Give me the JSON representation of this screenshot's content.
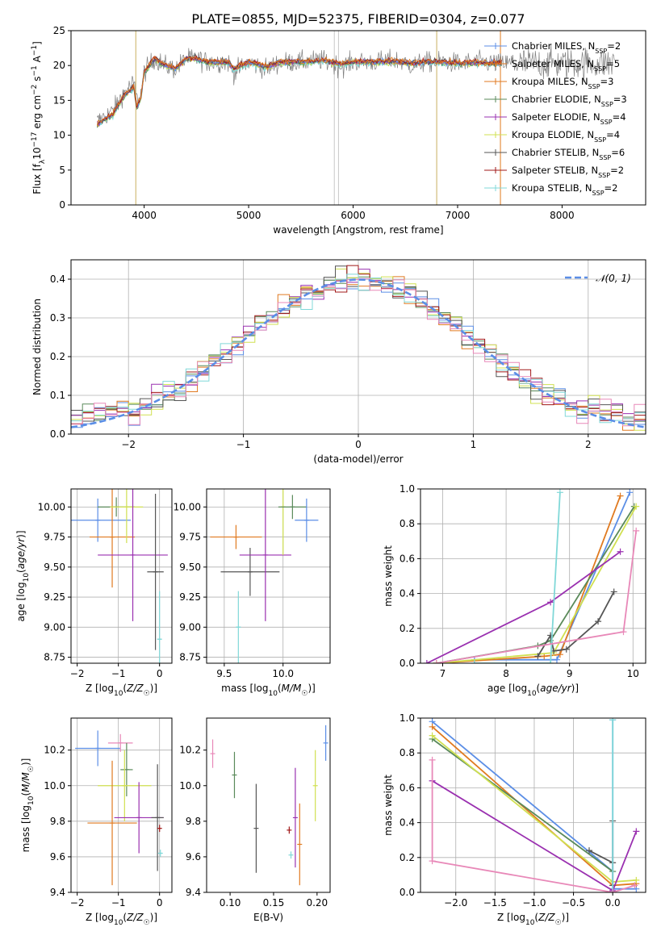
{
  "figure": {
    "title": "PLATE=0855, MJD=52375, FIBERID=0304, z=0.077"
  },
  "colors": {
    "series": [
      "#5b8ee6",
      "#e87b1c",
      "#c98b3c",
      "#5e8a58",
      "#a030c0",
      "#d6d83a",
      "#555555",
      "#b01818",
      "#7ed8d8"
    ],
    "lines": [
      "#5b8ee6",
      "#e07a20",
      "#e07a20",
      "#5a8a5a",
      "#9a30b0",
      "#d0e050",
      "#555555",
      "#a01818",
      "#80d8d8"
    ],
    "gaussian": "#5b8ee6",
    "grid": "#b0b0b0",
    "pink": "#e888b8"
  },
  "chart_data": [
    {
      "id": "spectrum",
      "type": "line",
      "xlabel": "wavelength [Angstrom, rest frame]",
      "ylabel": "Flux [f_λ10^-17 erg cm^-2 s^-1 A^-1]",
      "xlim": [
        3300,
        8800
      ],
      "ylim": [
        0,
        25
      ],
      "xticks": [
        4000,
        5000,
        6000,
        7000,
        8000
      ],
      "yticks": [
        0,
        5,
        10,
        15,
        20,
        25
      ],
      "grid": false,
      "legend_position": "right",
      "legend": [
        {
          "label": "Chabrier MILES, N",
          "sub": "SSP",
          "suffix": "=2"
        },
        {
          "label": "Salpeter MILES, N",
          "sub": "SSP",
          "suffix": "=5"
        },
        {
          "label": "Kroupa MILES, N",
          "sub": "SSP",
          "suffix": "=3"
        },
        {
          "label": "Chabrier ELODIE, N",
          "sub": "SSP",
          "suffix": "=3"
        },
        {
          "label": "Salpeter ELODIE, N",
          "sub": "SSP",
          "suffix": "=4"
        },
        {
          "label": "Kroupa ELODIE, N",
          "sub": "SSP",
          "suffix": "=4"
        },
        {
          "label": "Chabrier STELIB, N",
          "sub": "SSP",
          "suffix": "=6"
        },
        {
          "label": "Salpeter STELIB, N",
          "sub": "SSP",
          "suffix": "=2"
        },
        {
          "label": "Kroupa STELIB, N",
          "sub": "SSP",
          "suffix": "=2"
        }
      ],
      "data_continuum": [
        [
          3550,
          12
        ],
        [
          3700,
          13.5
        ],
        [
          3800,
          16
        ],
        [
          3900,
          17.5
        ],
        [
          3930,
          15
        ],
        [
          3970,
          16
        ],
        [
          4000,
          19
        ],
        [
          4100,
          21
        ],
        [
          4200,
          20
        ],
        [
          4300,
          19.5
        ],
        [
          4400,
          21
        ],
        [
          4500,
          21
        ],
        [
          4600,
          20.5
        ],
        [
          4800,
          20.5
        ],
        [
          4861,
          19
        ],
        [
          5000,
          20.5
        ],
        [
          5175,
          19.5
        ],
        [
          5300,
          20.5
        ],
        [
          5500,
          20.5
        ],
        [
          5700,
          20.8
        ],
        [
          5890,
          19.8
        ],
        [
          6000,
          20.5
        ],
        [
          6200,
          20.5
        ],
        [
          6400,
          20.8
        ],
        [
          6563,
          20
        ],
        [
          6700,
          20.5
        ],
        [
          6900,
          20.5
        ],
        [
          7000,
          20.3
        ],
        [
          7200,
          20.5
        ],
        [
          7420,
          20.3
        ]
      ],
      "model_continuum": [
        [
          3550,
          11.5
        ],
        [
          3700,
          13
        ],
        [
          3800,
          15.5
        ],
        [
          3900,
          17
        ],
        [
          3930,
          14
        ],
        [
          3970,
          15.5
        ],
        [
          4000,
          19
        ],
        [
          4100,
          21
        ],
        [
          4200,
          20
        ],
        [
          4300,
          19.5
        ],
        [
          4400,
          21
        ],
        [
          4500,
          21
        ],
        [
          4600,
          20.5
        ],
        [
          4800,
          20.5
        ],
        [
          4861,
          19.5
        ],
        [
          5000,
          20.5
        ],
        [
          5175,
          19.8
        ],
        [
          5300,
          20.5
        ],
        [
          5500,
          20.5
        ],
        [
          5700,
          20.7
        ],
        [
          5890,
          20.2
        ],
        [
          6000,
          20.5
        ],
        [
          6200,
          20.5
        ],
        [
          6400,
          20.6
        ],
        [
          6563,
          20.3
        ],
        [
          6700,
          20.5
        ],
        [
          6900,
          20.4
        ],
        [
          7000,
          20.3
        ],
        [
          7200,
          20.4
        ],
        [
          7420,
          20.3
        ]
      ],
      "masked_vlines": [
        3920,
        5820,
        5860,
        6800,
        7410
      ]
    },
    {
      "id": "residuals",
      "type": "histogram",
      "xlabel": "(data-model)/error",
      "ylabel": "Normed distribution",
      "xlim": [
        -2.5,
        2.5
      ],
      "ylim": [
        0,
        0.45
      ],
      "xticks": [
        -2,
        -1,
        0,
        1,
        2
      ],
      "yticks": [
        0.0,
        0.1,
        0.2,
        0.3,
        0.4
      ],
      "grid": true,
      "legend_position": "top-right",
      "gaussian_label": "N(0,1)",
      "bin_width": 0.1
    },
    {
      "id": "age_vs_Z",
      "type": "errorbar",
      "xlabel": "Z [log10(Z/Z☉)]",
      "ylabel": "age [log10(age/yr)]",
      "xlim": [
        -2.15,
        0.3
      ],
      "ylim": [
        8.7,
        10.15
      ],
      "xticks": [
        -2,
        -1,
        0
      ],
      "yticks": [
        8.75,
        9.0,
        9.25,
        9.5,
        9.75,
        10.0
      ],
      "grid": true,
      "points": [
        {
          "x": -1.5,
          "y": 9.89,
          "xerr": 0.8,
          "yerr": 0.18,
          "c": 0
        },
        {
          "x": -1.15,
          "y": 9.75,
          "xerr": 0.55,
          "yerr": 0.42,
          "c": 1
        },
        {
          "x": -1.05,
          "y": 10.0,
          "xerr": 0.45,
          "yerr": 0.08,
          "c": 3
        },
        {
          "x": -0.8,
          "y": 10.0,
          "xerr": 0.4,
          "yerr": 0.3,
          "c": 5
        },
        {
          "x": -0.65,
          "y": 9.6,
          "xerr": 0.85,
          "yerr": 0.55,
          "c": 4
        },
        {
          "x": -0.1,
          "y": 9.46,
          "xerr": 0.2,
          "yerr": 0.65,
          "c": 6
        },
        {
          "x": 0.0,
          "y": 8.9,
          "xerr": 0.05,
          "yerr": 0.4,
          "c": 8
        }
      ]
    },
    {
      "id": "age_vs_mass",
      "type": "errorbar",
      "xlabel": "mass [log10(M/M☉)]",
      "ylabel": "",
      "xlim": [
        9.35,
        10.4
      ],
      "ylim": [
        8.7,
        10.15
      ],
      "xticks": [
        9.5,
        10.0
      ],
      "yticks": [
        8.75,
        9.0,
        9.25,
        9.5,
        9.75,
        10.0
      ],
      "grid": true,
      "points": [
        {
          "x": 9.62,
          "y": 9.0,
          "xerr": 0.02,
          "yerr": 0.3,
          "c": 8
        },
        {
          "x": 9.6,
          "y": 9.75,
          "xerr": 0.22,
          "yerr": 0.1,
          "c": 1
        },
        {
          "x": 9.72,
          "y": 9.46,
          "xerr": 0.25,
          "yerr": 0.2,
          "c": 6
        },
        {
          "x": 9.85,
          "y": 9.6,
          "xerr": 0.22,
          "yerr": 0.55,
          "c": 4
        },
        {
          "x": 10.0,
          "y": 10.0,
          "xerr": 0.02,
          "yerr": 0.4,
          "c": 5
        },
        {
          "x": 10.08,
          "y": 10.0,
          "xerr": 0.12,
          "yerr": 0.1,
          "c": 3
        },
        {
          "x": 10.2,
          "y": 9.89,
          "xerr": 0.1,
          "yerr": 0.18,
          "c": 0
        }
      ]
    },
    {
      "id": "massweight_vs_age",
      "type": "line",
      "xlabel": "age [log10(age/yr)]",
      "ylabel": "mass weight",
      "xlim": [
        6.65,
        10.2
      ],
      "ylim": [
        0,
        1
      ],
      "xticks": [
        7,
        8,
        9,
        10
      ],
      "yticks": [
        0.0,
        0.2,
        0.4,
        0.6,
        0.8,
        1.0
      ],
      "grid": true,
      "series": [
        {
          "c": 0,
          "points": [
            [
              7.5,
              0.02
            ],
            [
              8.8,
              0.02
            ],
            [
              9.95,
              0.98
            ]
          ]
        },
        {
          "c": 1,
          "points": [
            [
              6.9,
              0.0
            ],
            [
              8.6,
              0.04
            ],
            [
              8.85,
              0.05
            ],
            [
              9.8,
              0.96
            ]
          ]
        },
        {
          "c": 3,
          "points": [
            [
              6.9,
              0.0
            ],
            [
              8.5,
              0.1
            ],
            [
              8.7,
              0.13
            ],
            [
              10.02,
              0.9
            ]
          ]
        },
        {
          "c": 5,
          "points": [
            [
              6.9,
              0.0
            ],
            [
              8.75,
              0.06
            ],
            [
              10.05,
              0.9
            ]
          ]
        },
        {
          "c": 4,
          "points": [
            [
              6.75,
              0.0
            ],
            [
              8.7,
              0.35
            ],
            [
              9.8,
              0.64
            ]
          ]
        },
        {
          "c": 6,
          "points": [
            [
              8.5,
              0.04
            ],
            [
              8.7,
              0.16
            ],
            [
              8.75,
              0.07
            ],
            [
              8.95,
              0.08
            ],
            [
              9.45,
              0.24
            ],
            [
              9.7,
              0.41
            ]
          ]
        },
        {
          "c": 8,
          "points": [
            [
              7.5,
              0.0
            ],
            [
              8.7,
              0.0
            ],
            [
              8.85,
              0.98
            ]
          ]
        },
        {
          "c": 9,
          "points": [
            [
              6.9,
              0.0
            ],
            [
              9.85,
              0.18
            ],
            [
              10.05,
              0.76
            ]
          ]
        }
      ]
    },
    {
      "id": "mass_vs_Z",
      "type": "errorbar",
      "xlabel": "Z [log10(Z/Z☉)]",
      "ylabel": "mass [log10(M/M☉)]",
      "xlim": [
        -2.15,
        0.3
      ],
      "ylim": [
        9.4,
        10.38
      ],
      "xticks": [
        -2,
        -1,
        0
      ],
      "yticks": [
        9.4,
        9.6,
        9.8,
        10.0,
        10.2
      ],
      "grid": true,
      "points": [
        {
          "x": -1.5,
          "y": 10.21,
          "xerr": 0.55,
          "yerr": 0.1,
          "c": 0
        },
        {
          "x": -0.95,
          "y": 10.24,
          "xerr": 0.3,
          "yerr": 0.05,
          "c": 9
        },
        {
          "x": -0.8,
          "y": 10.09,
          "xerr": 0.15,
          "yerr": 0.15,
          "c": 3
        },
        {
          "x": -0.85,
          "y": 10.0,
          "xerr": 0.65,
          "yerr": 0.2,
          "c": 5
        },
        {
          "x": -1.15,
          "y": 9.79,
          "xerr": 0.6,
          "yerr": 0.35,
          "c": 1
        },
        {
          "x": -0.5,
          "y": 9.82,
          "xerr": 0.6,
          "yerr": 0.2,
          "c": 4
        },
        {
          "x": -0.05,
          "y": 9.82,
          "xerr": 0.15,
          "yerr": 0.3,
          "c": 6
        },
        {
          "x": 0.0,
          "y": 9.76,
          "xerr": 0.02,
          "yerr": 0.02,
          "c": 7
        },
        {
          "x": 0.02,
          "y": 9.62,
          "xerr": 0.05,
          "yerr": 0.02,
          "c": 8
        }
      ]
    },
    {
      "id": "mass_vs_EBV",
      "type": "errorbar",
      "xlabel": "E(B-V)",
      "ylabel": "",
      "xlim": [
        0.073,
        0.215
      ],
      "ylim": [
        9.4,
        10.38
      ],
      "xticks": [
        0.1,
        0.15,
        0.2
      ],
      "yticks": [
        9.4,
        9.6,
        9.8,
        10.0,
        10.2
      ],
      "grid": false,
      "points": [
        {
          "x": 0.08,
          "y": 10.18,
          "xerr": 0,
          "yerr": 0.08,
          "c": 9
        },
        {
          "x": 0.105,
          "y": 10.06,
          "xerr": 0,
          "yerr": 0.13,
          "c": 3
        },
        {
          "x": 0.13,
          "y": 9.76,
          "xerr": 0,
          "yerr": 0.25,
          "c": 6
        },
        {
          "x": 0.168,
          "y": 9.75,
          "xerr": 0,
          "yerr": 0.02,
          "c": 7
        },
        {
          "x": 0.175,
          "y": 9.82,
          "xerr": 0,
          "yerr": 0.28,
          "c": 4
        },
        {
          "x": 0.18,
          "y": 9.67,
          "xerr": 0,
          "yerr": 0.23,
          "c": 1
        },
        {
          "x": 0.198,
          "y": 10.0,
          "xerr": 0,
          "yerr": 0.2,
          "c": 5
        },
        {
          "x": 0.21,
          "y": 10.24,
          "xerr": 0,
          "yerr": 0.1,
          "c": 0
        },
        {
          "x": 0.17,
          "y": 9.61,
          "xerr": 0,
          "yerr": 0.02,
          "c": 8
        }
      ]
    },
    {
      "id": "massweight_vs_Z",
      "type": "line",
      "xlabel": "Z [log10(Z/Z☉)]",
      "ylabel": "mass weight",
      "xlim": [
        -2.45,
        0.42
      ],
      "ylim": [
        0,
        1
      ],
      "xticks": [
        -2.0,
        -1.5,
        -1.0,
        -0.5,
        0.0
      ],
      "yticks": [
        0.0,
        0.2,
        0.4,
        0.6,
        0.8,
        1.0
      ],
      "grid": true,
      "series": [
        {
          "c": 0,
          "points": [
            [
              -2.3,
              0.98
            ],
            [
              0.0,
              0.12
            ],
            [
              0.0,
              0.99
            ],
            [
              0.0,
              0.02
            ],
            [
              0.3,
              0.02
            ]
          ]
        },
        {
          "c": 1,
          "points": [
            [
              -2.3,
              0.95
            ],
            [
              0.0,
              0.04
            ],
            [
              0.3,
              0.05
            ]
          ]
        },
        {
          "c": 3,
          "points": [
            [
              -2.3,
              0.88
            ],
            [
              0.0,
              0.12
            ]
          ]
        },
        {
          "c": 5,
          "points": [
            [
              -2.3,
              0.9
            ],
            [
              0.0,
              0.06
            ],
            [
              0.3,
              0.07
            ]
          ]
        },
        {
          "c": 6,
          "points": [
            [
              -0.3,
              0.24
            ],
            [
              0.0,
              0.17
            ],
            [
              0.0,
              0.41
            ],
            [
              0.0,
              0.04
            ]
          ]
        },
        {
          "c": 4,
          "points": [
            [
              -2.3,
              0.64
            ],
            [
              0.0,
              0.01
            ],
            [
              0.3,
              0.35
            ]
          ]
        },
        {
          "c": 8,
          "points": [
            [
              0.0,
              0.0
            ],
            [
              0.0,
              0.99
            ]
          ]
        },
        {
          "c": 9,
          "points": [
            [
              -2.3,
              0.76
            ],
            [
              -2.3,
              0.18
            ],
            [
              0.0,
              0.0
            ],
            [
              0.28,
              0.04
            ]
          ]
        }
      ]
    }
  ]
}
